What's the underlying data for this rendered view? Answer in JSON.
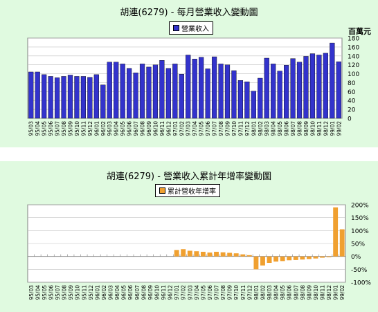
{
  "chart_data": [
    {
      "type": "bar",
      "title": "胡連(6279) - 每月營業收入變動圖",
      "legend": "營業收入",
      "ylabel": "百萬元",
      "ylim": [
        0,
        180
      ],
      "yticks": [
        0,
        20,
        40,
        60,
        80,
        100,
        120,
        140,
        160,
        180
      ],
      "color": "#3333cc",
      "categories": [
        "95/03",
        "95/04",
        "95/05",
        "95/06",
        "95/07",
        "95/08",
        "95/09",
        "95/10",
        "95/11",
        "95/12",
        "96/01",
        "96/02",
        "96/03",
        "96/04",
        "96/05",
        "96/06",
        "96/07",
        "96/08",
        "96/09",
        "96/10",
        "96/11",
        "96/12",
        "97/01",
        "97/02",
        "97/03",
        "97/04",
        "97/05",
        "97/06",
        "97/07",
        "97/08",
        "97/09",
        "97/10",
        "97/11",
        "97/12",
        "98/01",
        "98/02",
        "98/03",
        "98/04",
        "98/05",
        "98/06",
        "98/07",
        "98/08",
        "98/09",
        "98/10",
        "98/11",
        "98/12",
        "99/01",
        "99/02"
      ],
      "values": [
        104,
        104,
        98,
        94,
        91,
        94,
        97,
        94,
        94,
        92,
        98,
        75,
        126,
        126,
        122,
        112,
        102,
        122,
        115,
        120,
        130,
        112,
        122,
        99,
        142,
        133,
        137,
        111,
        138,
        122,
        120,
        107,
        85,
        82,
        61,
        90,
        135,
        122,
        106,
        119,
        134,
        126,
        139,
        145,
        142,
        146,
        169,
        127
      ]
    },
    {
      "type": "bar",
      "title": "胡連(6279) -  營業收入累計年增率變動圖",
      "legend": "累計營收年增率",
      "ylim": [
        -100,
        200
      ],
      "yticks": [
        "200%",
        "150%",
        "100%",
        "50%",
        "0%",
        "-50%",
        "-100%"
      ],
      "ytick_values": [
        200,
        150,
        100,
        50,
        0,
        -50,
        -100
      ],
      "color": "#f0a030",
      "categories": [
        "95/03",
        "95/04",
        "95/05",
        "95/06",
        "95/07",
        "95/08",
        "95/09",
        "95/10",
        "95/11",
        "95/12",
        "96/01",
        "96/02",
        "96/03",
        "96/04",
        "96/05",
        "96/06",
        "96/07",
        "96/08",
        "96/09",
        "96/10",
        "96/11",
        "96/12",
        "97/01",
        "97/02",
        "97/03",
        "97/04",
        "97/05",
        "97/06",
        "97/07",
        "97/08",
        "97/09",
        "97/10",
        "97/11",
        "97/12",
        "98/01",
        "98/02",
        "98/03",
        "98/04",
        "98/05",
        "98/06",
        "98/07",
        "98/08",
        "98/09",
        "98/10",
        "98/11",
        "98/12",
        "99/01",
        "99/02"
      ],
      "values": [
        0,
        0,
        0,
        0,
        0,
        0,
        0,
        0,
        0,
        0,
        0,
        0,
        0,
        0,
        0,
        0,
        0,
        0,
        0,
        0,
        0,
        0,
        25,
        28,
        22,
        20,
        18,
        15,
        18,
        16,
        14,
        12,
        8,
        5,
        -50,
        -35,
        -25,
        -20,
        -18,
        -15,
        -14,
        -12,
        -10,
        -8,
        -5,
        -3,
        190,
        105
      ]
    }
  ]
}
